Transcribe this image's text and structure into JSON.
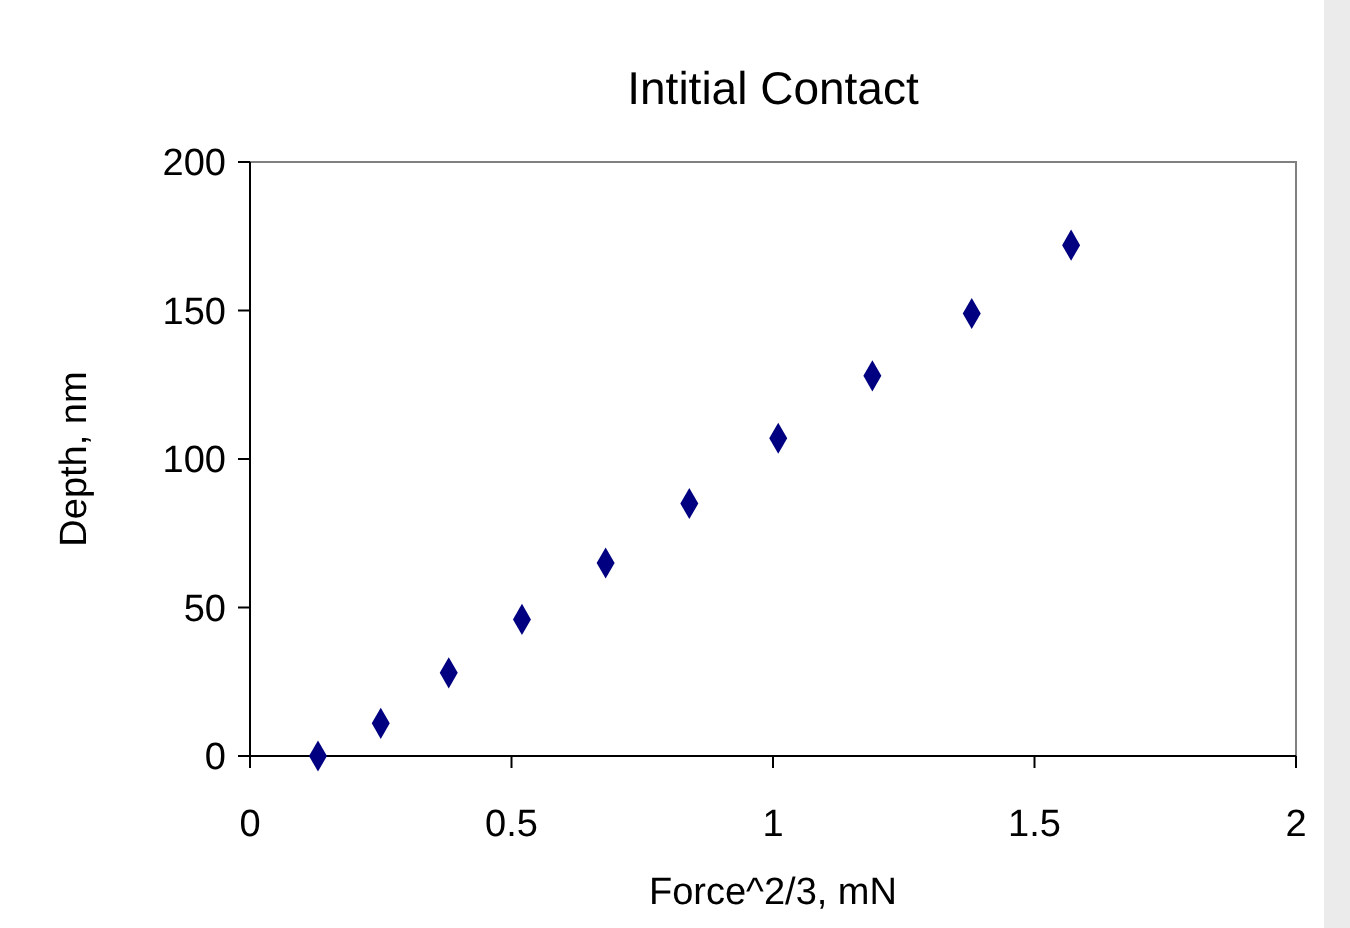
{
  "chart_data": {
    "type": "scatter",
    "title": "Intitial Contact",
    "xlabel": "Force^2/3, mN",
    "ylabel": "Depth, nm",
    "x": [
      0.13,
      0.25,
      0.38,
      0.52,
      0.68,
      0.84,
      1.01,
      1.19,
      1.38,
      1.57
    ],
    "series": [
      {
        "color": "#000080",
        "values": [
          0,
          11,
          28,
          46,
          65,
          85,
          107,
          128,
          149,
          172
        ]
      }
    ],
    "xlim": [
      0,
      2
    ],
    "xticks": [
      0,
      0.5,
      1,
      1.5,
      2
    ],
    "ylim": [
      0,
      200
    ],
    "yticks": [
      0,
      50,
      100,
      150,
      200
    ],
    "marker": "diamond",
    "grid": false
  }
}
